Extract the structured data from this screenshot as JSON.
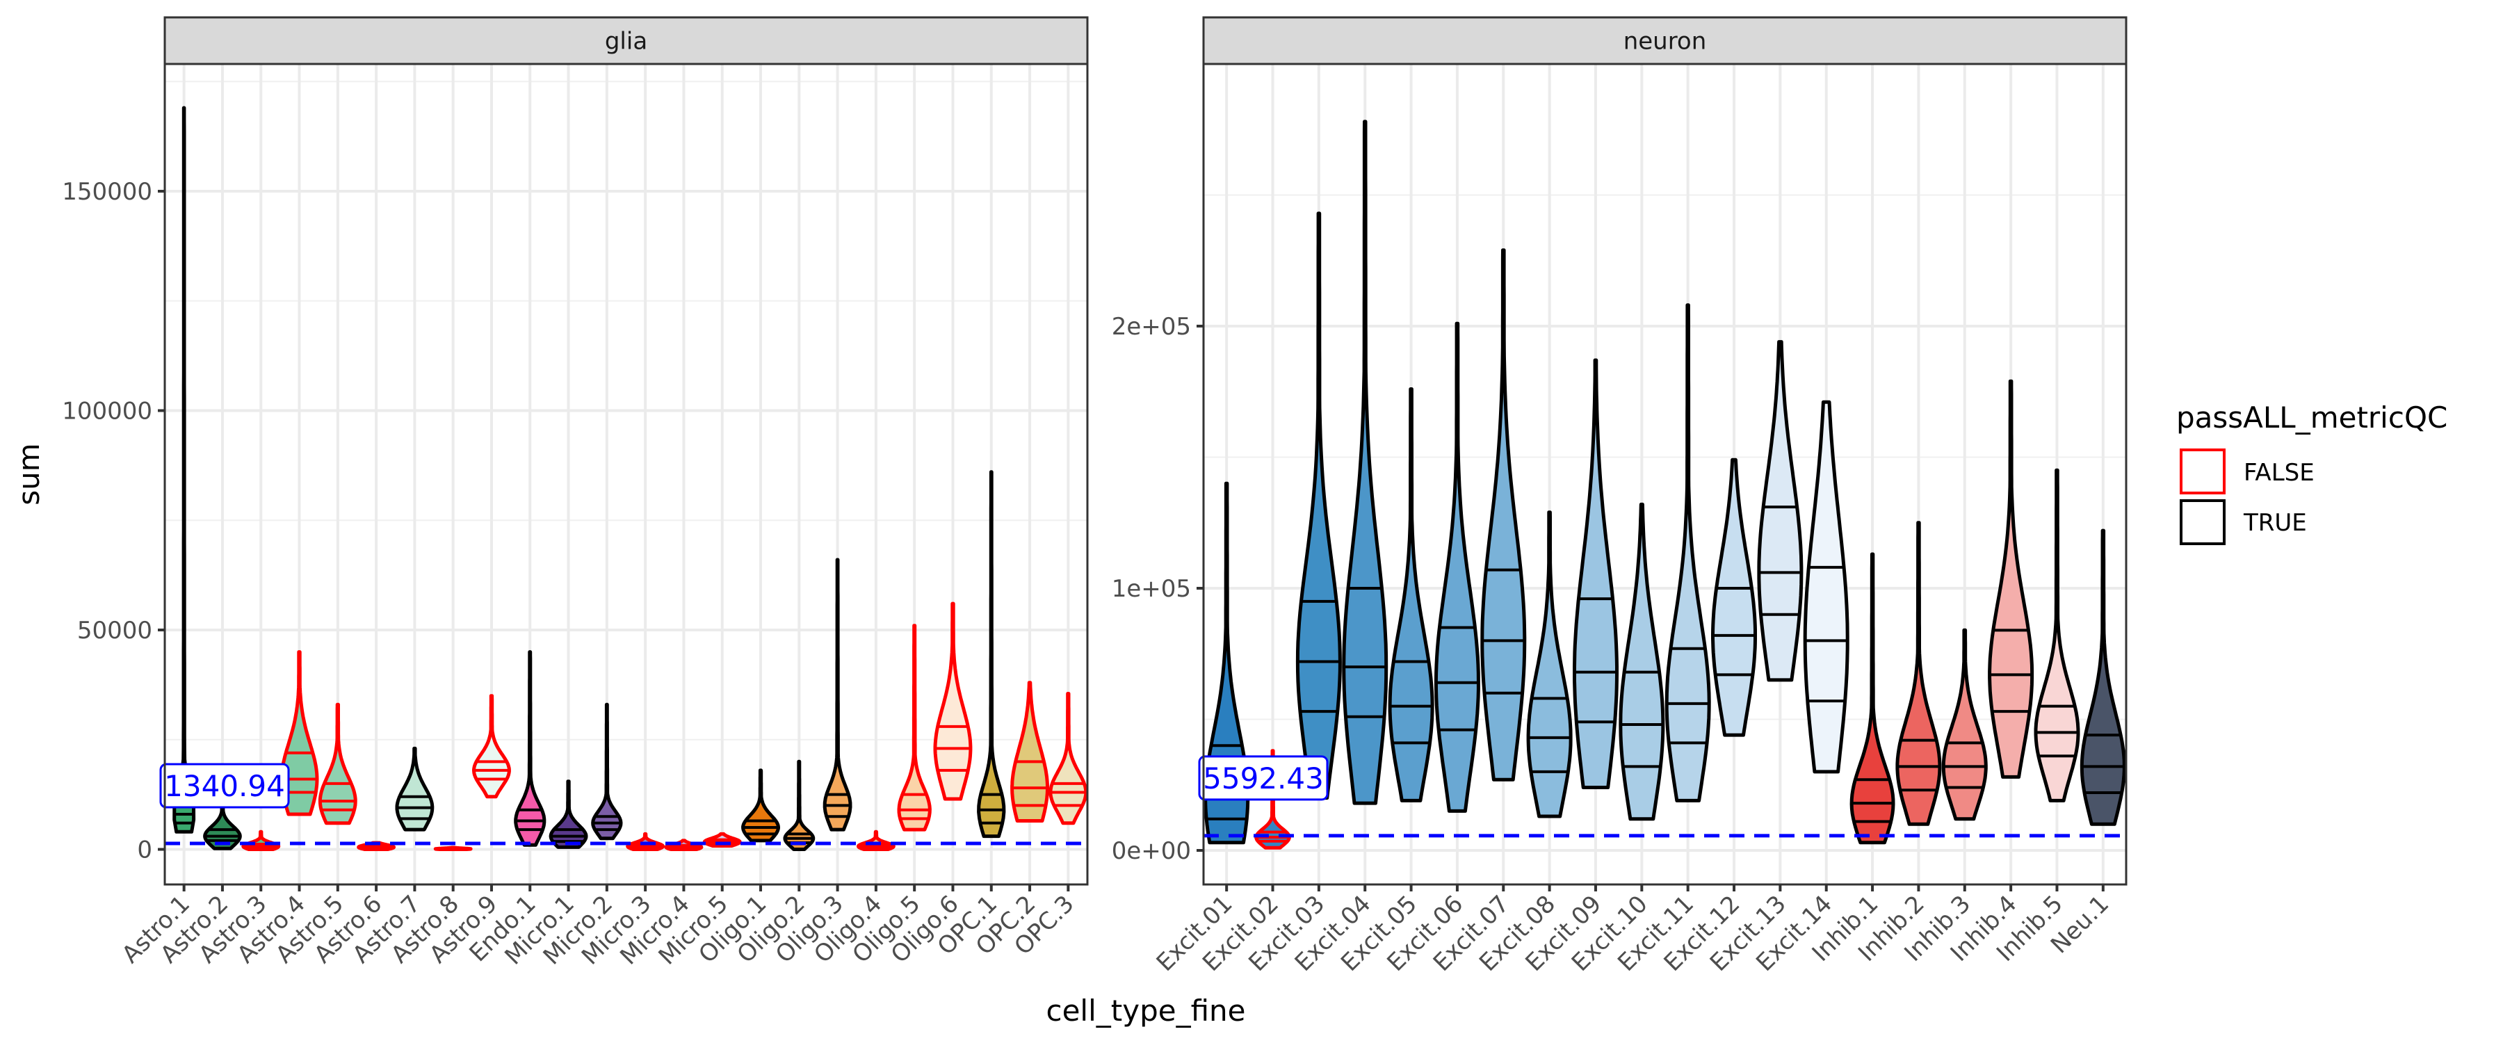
{
  "chart_data": {
    "type": "violin",
    "facet_var": "region",
    "xlabel": "cell_type_fine",
    "ylabel": "sum",
    "legend": {
      "title": "passALL_metricQC",
      "placement": "right",
      "entries": [
        {
          "label": "FALSE",
          "color": "#ff0000"
        },
        {
          "label": "TRUE",
          "color": "#000000"
        }
      ]
    },
    "grid": true,
    "threshold_line_color": "#0000ff",
    "panels": [
      {
        "title": "glia",
        "ylim": [
          -8000,
          179000
        ],
        "yticks": [
          0,
          50000,
          100000,
          150000
        ],
        "ytick_labels": [
          "0",
          "50000",
          "100000",
          "150000"
        ],
        "threshold": 1340.94,
        "threshold_label": "1340.94",
        "violins": [
          {
            "label": "Astro.1",
            "pass": "TRUE",
            "fill": "#3aaa6e",
            "min": 4000,
            "q1": 6000,
            "median": 8000,
            "q3": 12000,
            "max": 169000
          },
          {
            "label": "Astro.2",
            "pass": "TRUE",
            "fill": "#2e8b57",
            "min": 200,
            "q1": 2000,
            "median": 3000,
            "q3": 4500,
            "max": 17000
          },
          {
            "label": "Astro.3",
            "pass": "FALSE",
            "fill": "#5fbf8a",
            "min": 0,
            "q1": 300,
            "median": 700,
            "q3": 1200,
            "max": 4000
          },
          {
            "label": "Astro.4",
            "pass": "FALSE",
            "fill": "#7fcba4",
            "min": 8000,
            "q1": 13000,
            "median": 16000,
            "q3": 22000,
            "max": 45000
          },
          {
            "label": "Astro.5",
            "pass": "FALSE",
            "fill": "#8fd1b0",
            "min": 6000,
            "q1": 9000,
            "median": 11000,
            "q3": 15000,
            "max": 33000
          },
          {
            "label": "Astro.6",
            "pass": "FALSE",
            "fill": "#a8dcc2",
            "min": 0,
            "q1": 200,
            "median": 500,
            "q3": 800,
            "max": 1500
          },
          {
            "label": "Astro.7",
            "pass": "TRUE",
            "fill": "#c0e6d4",
            "min": 4500,
            "q1": 7000,
            "median": 9500,
            "q3": 12000,
            "max": 23000
          },
          {
            "label": "Astro.8",
            "pass": "FALSE",
            "fill": "#d6efe3",
            "min": 0,
            "q1": 50,
            "median": 100,
            "q3": 200,
            "max": 400
          },
          {
            "label": "Astro.9",
            "pass": "FALSE",
            "fill": "#eaf7f1",
            "min": 12000,
            "q1": 16000,
            "median": 18000,
            "q3": 20000,
            "max": 35000
          },
          {
            "label": "Endo.1",
            "pass": "TRUE",
            "fill": "#f55aa9",
            "min": 1000,
            "q1": 4500,
            "median": 6500,
            "q3": 9000,
            "max": 45000
          },
          {
            "label": "Micro.1",
            "pass": "TRUE",
            "fill": "#5a3a8c",
            "min": 500,
            "q1": 1800,
            "median": 3000,
            "q3": 4500,
            "max": 15500
          },
          {
            "label": "Micro.2",
            "pass": "TRUE",
            "fill": "#7b5ea7",
            "min": 2500,
            "q1": 4500,
            "median": 6000,
            "q3": 7500,
            "max": 33000
          },
          {
            "label": "Micro.3",
            "pass": "FALSE",
            "fill": "#9b84c0",
            "min": 0,
            "q1": 300,
            "median": 700,
            "q3": 1200,
            "max": 3500
          },
          {
            "label": "Micro.4",
            "pass": "FALSE",
            "fill": "#b9a8d5",
            "min": 0,
            "q1": 200,
            "median": 500,
            "q3": 900,
            "max": 2000
          },
          {
            "label": "Micro.5",
            "pass": "FALSE",
            "fill": "#d6cce8",
            "min": 800,
            "q1": 1300,
            "median": 1700,
            "q3": 2200,
            "max": 3500
          },
          {
            "label": "Oligo.1",
            "pass": "TRUE",
            "fill": "#e8780c",
            "min": 2000,
            "q1": 3500,
            "median": 5000,
            "q3": 6500,
            "max": 18000
          },
          {
            "label": "Oligo.2",
            "pass": "TRUE",
            "fill": "#f09a40",
            "min": 0,
            "q1": 1500,
            "median": 2500,
            "q3": 3500,
            "max": 20000
          },
          {
            "label": "Oligo.3",
            "pass": "TRUE",
            "fill": "#f4a75a",
            "min": 4500,
            "q1": 7500,
            "median": 10000,
            "q3": 12500,
            "max": 66000
          },
          {
            "label": "Oligo.4",
            "pass": "FALSE",
            "fill": "#f7bd82",
            "min": 0,
            "q1": 300,
            "median": 700,
            "q3": 1200,
            "max": 4000
          },
          {
            "label": "Oligo.5",
            "pass": "FALSE",
            "fill": "#fbd3a8",
            "min": 4500,
            "q1": 7000,
            "median": 9000,
            "q3": 12500,
            "max": 51000
          },
          {
            "label": "Oligo.6",
            "pass": "FALSE",
            "fill": "#fde9d7",
            "min": 11500,
            "q1": 18000,
            "median": 23000,
            "q3": 28000,
            "max": 56000
          },
          {
            "label": "OPC.1",
            "pass": "TRUE",
            "fill": "#cfae3e",
            "min": 3000,
            "q1": 6000,
            "median": 9000,
            "q3": 12500,
            "max": 86000
          },
          {
            "label": "OPC.2",
            "pass": "FALSE",
            "fill": "#e0c97a",
            "min": 6500,
            "q1": 10000,
            "median": 14000,
            "q3": 20000,
            "max": 38000
          },
          {
            "label": "OPC.3",
            "pass": "FALSE",
            "fill": "#efe3bd",
            "min": 6000,
            "q1": 10000,
            "median": 13000,
            "q3": 15000,
            "max": 35500
          }
        ]
      },
      {
        "title": "neuron",
        "ylim": [
          -13000,
          300000
        ],
        "yticks": [
          0,
          100000,
          200000
        ],
        "ytick_labels": [
          "0e+00",
          "1e+05",
          "2e+05"
        ],
        "threshold": 5592.43,
        "threshold_label": "5592.43",
        "violins": [
          {
            "label": "Excit.01",
            "pass": "TRUE",
            "fill": "#2a7fbf",
            "min": 3000,
            "q1": 12000,
            "median": 20000,
            "q3": 40000,
            "max": 140000
          },
          {
            "label": "Excit.02",
            "pass": "FALSE",
            "fill": "#3486c2",
            "min": 1000,
            "q1": 3500,
            "median": 5000,
            "q3": 7000,
            "max": 38000
          },
          {
            "label": "Excit.03",
            "pass": "TRUE",
            "fill": "#3f8fc5",
            "min": 20000,
            "q1": 53000,
            "median": 72000,
            "q3": 95000,
            "max": 243000
          },
          {
            "label": "Excit.04",
            "pass": "TRUE",
            "fill": "#4c96c9",
            "min": 18000,
            "q1": 51000,
            "median": 70000,
            "q3": 100000,
            "max": 278000
          },
          {
            "label": "Excit.05",
            "pass": "TRUE",
            "fill": "#5b9fce",
            "min": 19000,
            "q1": 41000,
            "median": 55000,
            "q3": 72000,
            "max": 176000
          },
          {
            "label": "Excit.06",
            "pass": "TRUE",
            "fill": "#6aa8d3",
            "min": 15000,
            "q1": 46000,
            "median": 64000,
            "q3": 85000,
            "max": 201000
          },
          {
            "label": "Excit.07",
            "pass": "TRUE",
            "fill": "#7ab2d8",
            "min": 27000,
            "q1": 60000,
            "median": 80000,
            "q3": 107000,
            "max": 229000
          },
          {
            "label": "Excit.08",
            "pass": "TRUE",
            "fill": "#8bbcdd",
            "min": 13000,
            "q1": 30000,
            "median": 43000,
            "q3": 58000,
            "max": 129000
          },
          {
            "label": "Excit.09",
            "pass": "TRUE",
            "fill": "#9bc5e2",
            "min": 24000,
            "q1": 49000,
            "median": 68000,
            "q3": 96000,
            "max": 187000
          },
          {
            "label": "Excit.10",
            "pass": "TRUE",
            "fill": "#a9cde6",
            "min": 12000,
            "q1": 32000,
            "median": 48000,
            "q3": 68000,
            "max": 132000
          },
          {
            "label": "Excit.11",
            "pass": "TRUE",
            "fill": "#b6d4ea",
            "min": 19000,
            "q1": 41000,
            "median": 56000,
            "q3": 77000,
            "max": 208000
          },
          {
            "label": "Excit.12",
            "pass": "TRUE",
            "fill": "#c7def0",
            "min": 44000,
            "q1": 67000,
            "median": 82000,
            "q3": 100000,
            "max": 149000
          },
          {
            "label": "Excit.13",
            "pass": "TRUE",
            "fill": "#dce9f5",
            "min": 65000,
            "q1": 90000,
            "median": 106000,
            "q3": 131000,
            "max": 194000
          },
          {
            "label": "Excit.14",
            "pass": "TRUE",
            "fill": "#edf4fb",
            "min": 30000,
            "q1": 57000,
            "median": 80000,
            "q3": 108000,
            "max": 171000
          },
          {
            "label": "Inhib.1",
            "pass": "TRUE",
            "fill": "#e8413d",
            "min": 3000,
            "q1": 11000,
            "median": 18000,
            "q3": 27000,
            "max": 113000
          },
          {
            "label": "Inhib.2",
            "pass": "TRUE",
            "fill": "#ec6560",
            "min": 10000,
            "q1": 23000,
            "median": 32000,
            "q3": 42000,
            "max": 125000
          },
          {
            "label": "Inhib.3",
            "pass": "TRUE",
            "fill": "#f08a85",
            "min": 12000,
            "q1": 24000,
            "median": 32000,
            "q3": 41000,
            "max": 84000
          },
          {
            "label": "Inhib.4",
            "pass": "TRUE",
            "fill": "#f4aeab",
            "min": 28000,
            "q1": 53000,
            "median": 67000,
            "q3": 84000,
            "max": 179000
          },
          {
            "label": "Inhib.5",
            "pass": "TRUE",
            "fill": "#f9d6d5",
            "min": 19000,
            "q1": 36000,
            "median": 45000,
            "q3": 55000,
            "max": 145000
          },
          {
            "label": "Neu.1",
            "pass": "TRUE",
            "fill": "#4a5468",
            "min": 10000,
            "q1": 22000,
            "median": 32000,
            "q3": 44000,
            "max": 122000
          }
        ]
      }
    ]
  }
}
